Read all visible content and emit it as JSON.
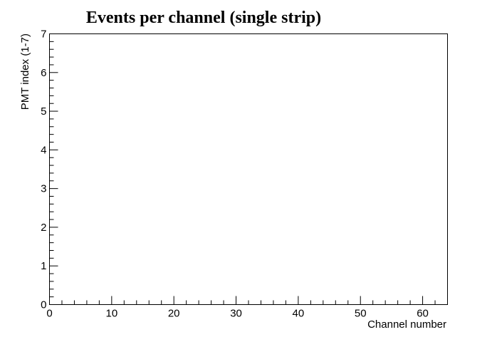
{
  "chart_data": {
    "type": "heatmap",
    "title": "Events per channel (single strip)",
    "xlabel": "Channel number",
    "ylabel": "PMT index (1-7)",
    "xlim": [
      0,
      64
    ],
    "ylim": [
      0,
      7
    ],
    "x_ticks": [
      0,
      10,
      20,
      30,
      40,
      50,
      60
    ],
    "y_ticks": [
      0,
      1,
      2,
      3,
      4,
      5,
      6,
      7
    ],
    "grid": false,
    "legend": "none",
    "cells": [],
    "colors": {
      "frame": "#000000",
      "background": "#ffffff"
    }
  }
}
